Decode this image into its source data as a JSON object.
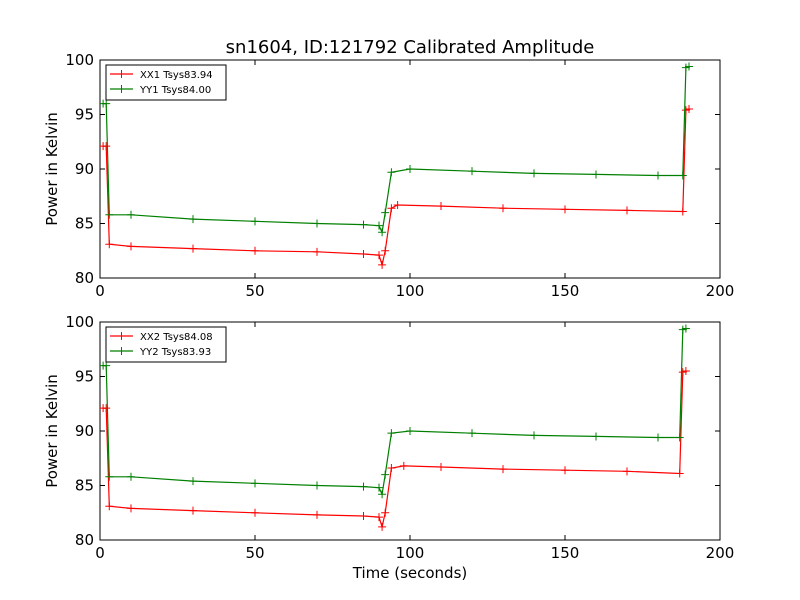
{
  "title": "sn1604, ID:121792 Calibrated Amplitude",
  "colors": {
    "xx": "#ff0000",
    "yy": "#008000"
  },
  "chart_data": [
    {
      "type": "line",
      "title": "sn1604, ID:121792 Calibrated Amplitude",
      "xlabel": "",
      "ylabel": "Power in Kelvin",
      "xlim": [
        0,
        200
      ],
      "ylim": [
        80,
        100
      ],
      "xticks": [
        "0",
        "50",
        "100",
        "150",
        "200"
      ],
      "yticks": [
        "80",
        "85",
        "90",
        "95",
        "100"
      ],
      "grid": false,
      "legend_position": "upper-left",
      "series": [
        {
          "name": "XX1 Tsys83.94",
          "color": "#ff0000",
          "points": [
            [
              1,
              92.1
            ],
            [
              2,
              92.1
            ],
            [
              3,
              83.1
            ],
            [
              10,
              82.9
            ],
            [
              30,
              82.7
            ],
            [
              50,
              82.5
            ],
            [
              70,
              82.4
            ],
            [
              85,
              82.2
            ],
            [
              90,
              82.1
            ],
            [
              91,
              81.2
            ],
            [
              92,
              82.5
            ],
            [
              94,
              86.4
            ],
            [
              96,
              86.7
            ],
            [
              110,
              86.6
            ],
            [
              130,
              86.4
            ],
            [
              150,
              86.3
            ],
            [
              170,
              86.2
            ],
            [
              188,
              86.1
            ],
            [
              189,
              95.4
            ],
            [
              190,
              95.5
            ]
          ]
        },
        {
          "name": "YY1 Tsys84.00",
          "color": "#008000",
          "points": [
            [
              1,
              96.0
            ],
            [
              2,
              96.0
            ],
            [
              3,
              85.8
            ],
            [
              10,
              85.8
            ],
            [
              30,
              85.4
            ],
            [
              50,
              85.2
            ],
            [
              70,
              85.0
            ],
            [
              85,
              84.9
            ],
            [
              90,
              84.8
            ],
            [
              91,
              84.2
            ],
            [
              92,
              86.0
            ],
            [
              94,
              89.7
            ],
            [
              100,
              90.0
            ],
            [
              120,
              89.8
            ],
            [
              140,
              89.6
            ],
            [
              160,
              89.5
            ],
            [
              180,
              89.4
            ],
            [
              188,
              89.4
            ],
            [
              189,
              99.3
            ],
            [
              190,
              99.4
            ]
          ]
        }
      ]
    },
    {
      "type": "line",
      "title": "",
      "xlabel": "Time (seconds)",
      "ylabel": "Power in Kelvin",
      "xlim": [
        0,
        200
      ],
      "ylim": [
        80,
        100
      ],
      "xticks": [
        "0",
        "50",
        "100",
        "150",
        "200"
      ],
      "yticks": [
        "80",
        "85",
        "90",
        "95",
        "100"
      ],
      "grid": false,
      "legend_position": "upper-left",
      "series": [
        {
          "name": "XX2 Tsys84.08",
          "color": "#ff0000",
          "points": [
            [
              1,
              92.1
            ],
            [
              2,
              92.1
            ],
            [
              3,
              83.1
            ],
            [
              10,
              82.9
            ],
            [
              30,
              82.7
            ],
            [
              50,
              82.5
            ],
            [
              70,
              82.3
            ],
            [
              85,
              82.2
            ],
            [
              90,
              82.1
            ],
            [
              91,
              81.2
            ],
            [
              92,
              82.5
            ],
            [
              94,
              86.6
            ],
            [
              98,
              86.8
            ],
            [
              110,
              86.7
            ],
            [
              130,
              86.5
            ],
            [
              150,
              86.4
            ],
            [
              170,
              86.3
            ],
            [
              187,
              86.1
            ],
            [
              188,
              95.4
            ],
            [
              189,
              95.5
            ]
          ]
        },
        {
          "name": "YY2 Tsys83.93",
          "color": "#008000",
          "points": [
            [
              1,
              96.0
            ],
            [
              2,
              96.0
            ],
            [
              3,
              85.8
            ],
            [
              10,
              85.8
            ],
            [
              30,
              85.4
            ],
            [
              50,
              85.2
            ],
            [
              70,
              85.0
            ],
            [
              85,
              84.9
            ],
            [
              90,
              84.8
            ],
            [
              91,
              84.2
            ],
            [
              92,
              86.0
            ],
            [
              94,
              89.8
            ],
            [
              100,
              90.0
            ],
            [
              120,
              89.8
            ],
            [
              140,
              89.6
            ],
            [
              160,
              89.5
            ],
            [
              180,
              89.4
            ],
            [
              187,
              89.4
            ],
            [
              188,
              99.3
            ],
            [
              189,
              99.4
            ]
          ]
        }
      ]
    }
  ]
}
